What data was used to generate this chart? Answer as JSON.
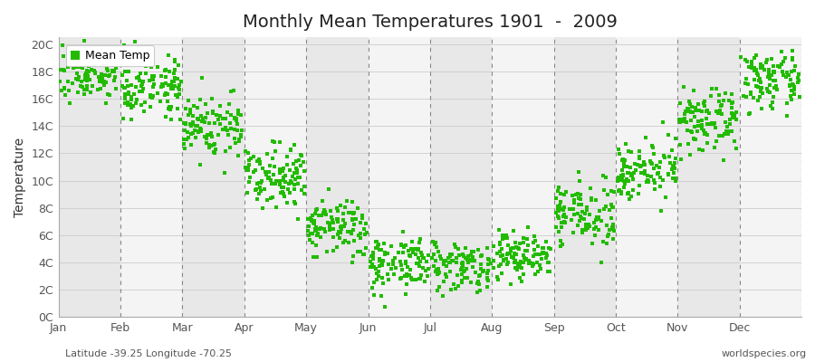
{
  "title": "Monthly Mean Temperatures 1901  -  2009",
  "ylabel": "Temperature",
  "xlabel_labels": [
    "Jan",
    "Feb",
    "Mar",
    "Apr",
    "May",
    "Jun",
    "Jul",
    "Aug",
    "Sep",
    "Oct",
    "Nov",
    "Dec"
  ],
  "footer_left": "Latitude -39.25 Longitude -70.25",
  "footer_right": "worldspecies.org",
  "legend_label": "Mean Temp",
  "dot_color": "#22bb00",
  "background_color": "#ffffff",
  "stripe_dark": "#e8e8e8",
  "stripe_light": "#f4f4f4",
  "dashed_line_color": "#888888",
  "ytick_labels": [
    "0C",
    "2C",
    "4C",
    "6C",
    "8C",
    "10C",
    "12C",
    "14C",
    "16C",
    "18C",
    "20C"
  ],
  "ytick_values": [
    0,
    2,
    4,
    6,
    8,
    10,
    12,
    14,
    16,
    18,
    20
  ],
  "ylim": [
    0,
    20.5
  ],
  "num_years": 109,
  "monthly_means": [
    17.8,
    17.0,
    14.0,
    10.5,
    6.5,
    4.0,
    3.8,
    4.5,
    7.5,
    10.8,
    14.3,
    17.3
  ],
  "monthly_stds": [
    0.9,
    1.1,
    1.2,
    1.1,
    1.1,
    1.0,
    0.9,
    0.9,
    1.1,
    1.0,
    1.1,
    1.0
  ],
  "title_fontsize": 14,
  "axis_label_fontsize": 10,
  "tick_fontsize": 9,
  "footer_fontsize": 8,
  "legend_fontsize": 9,
  "dot_size": 5,
  "dpi": 100,
  "figsize": [
    9.0,
    4.0
  ]
}
